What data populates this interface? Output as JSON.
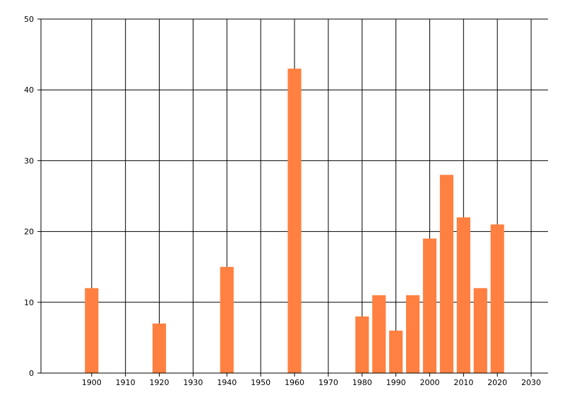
{
  "chart_data": {
    "type": "bar",
    "x": [
      1900,
      1920,
      1940,
      1960,
      1980,
      1985,
      1990,
      1995,
      2000,
      2005,
      2010,
      2015,
      2020
    ],
    "values": [
      12,
      7,
      15,
      43,
      8,
      11,
      6,
      11,
      19,
      28,
      22,
      12,
      21
    ],
    "xlim": [
      1885,
      2035
    ],
    "ylim": [
      0,
      50
    ],
    "x_ticks": [
      "1900",
      "1910",
      "1920",
      "1930",
      "1940",
      "1950",
      "1960",
      "1970",
      "1980",
      "1990",
      "2000",
      "2010",
      "2020",
      "2030"
    ],
    "y_ticks": [
      "0",
      "10",
      "20",
      "30",
      "40",
      "50"
    ],
    "title": "",
    "xlabel": "",
    "ylabel": "",
    "grid": true,
    "bar_color": "#ff8040",
    "grid_color": "#000000"
  }
}
